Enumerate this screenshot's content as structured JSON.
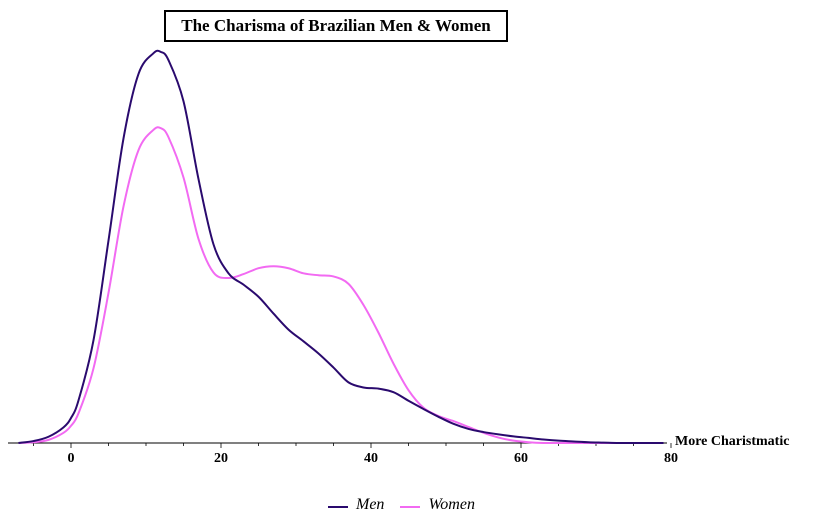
{
  "chart_data": {
    "type": "line",
    "title": "The Charisma of Brazilian Men & Women",
    "xlabel": "More Charistmatic",
    "ylabel": "",
    "xlim": [
      -7,
      79
    ],
    "ylim": [
      0,
      1
    ],
    "x_ticks": [
      0,
      20,
      40,
      60,
      80
    ],
    "y_ticks_shown": false,
    "grid": false,
    "legend_position": "bottom",
    "x": [
      -7,
      -5,
      -3,
      -1,
      0,
      1,
      3,
      5,
      7,
      9,
      11,
      12,
      13,
      15,
      17,
      19,
      21,
      23,
      25,
      27,
      29,
      31,
      33,
      35,
      37,
      39,
      41,
      43,
      45,
      47,
      49,
      51,
      53,
      55,
      57,
      59,
      61,
      63,
      65,
      67,
      69,
      71,
      73,
      75,
      77,
      79
    ],
    "series": [
      {
        "name": "Men",
        "color": "#2a0a6e",
        "values": [
          0.0,
          0.005,
          0.016,
          0.04,
          0.064,
          0.109,
          0.263,
          0.518,
          0.779,
          0.944,
          0.997,
          1.0,
          0.979,
          0.874,
          0.675,
          0.508,
          0.434,
          0.405,
          0.374,
          0.331,
          0.29,
          0.26,
          0.229,
          0.193,
          0.155,
          0.142,
          0.139,
          0.13,
          0.108,
          0.087,
          0.067,
          0.049,
          0.036,
          0.028,
          0.022,
          0.017,
          0.013,
          0.009,
          0.006,
          0.004,
          0.002,
          0.001,
          0.0,
          0.0,
          0.0,
          0.0
        ]
      },
      {
        "name": "Women",
        "color": "#f26af2",
        "values": [
          0.0,
          0.002,
          0.008,
          0.026,
          0.044,
          0.076,
          0.191,
          0.384,
          0.605,
          0.749,
          0.801,
          0.805,
          0.782,
          0.679,
          0.522,
          0.436,
          0.422,
          0.432,
          0.447,
          0.452,
          0.447,
          0.434,
          0.429,
          0.426,
          0.407,
          0.353,
          0.282,
          0.203,
          0.135,
          0.09,
          0.069,
          0.056,
          0.041,
          0.026,
          0.014,
          0.006,
          0.002,
          0.0,
          0.0,
          0.0,
          0.0,
          0.0,
          0.0,
          0.0,
          0.0,
          0.0
        ]
      }
    ]
  }
}
